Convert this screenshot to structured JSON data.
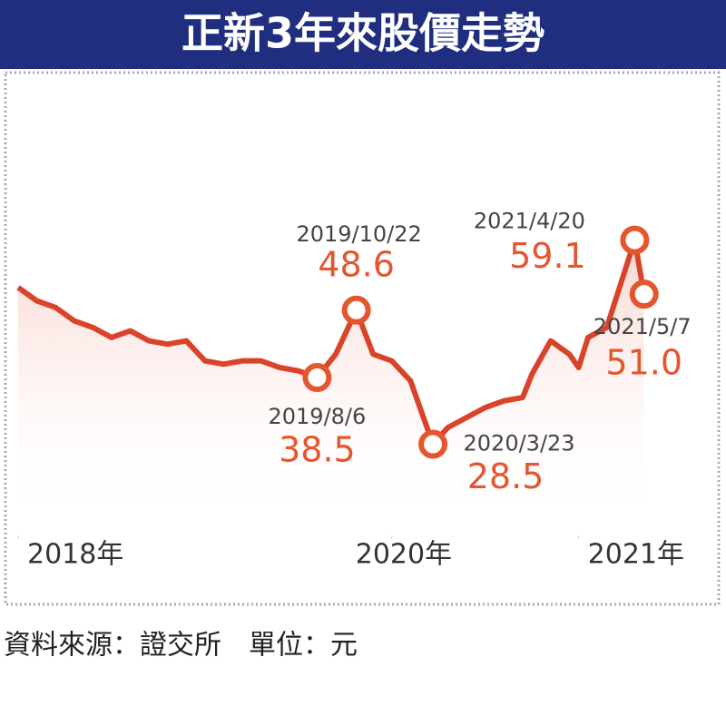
{
  "chart_data": {
    "type": "line",
    "title": "正新3年來股價走勢",
    "source": "資料來源：證交所　單位：元",
    "color": "#d9432a",
    "x": [
      2018.0,
      2018.1,
      2018.2,
      2018.3,
      2018.4,
      2018.5,
      2018.6,
      2018.7,
      2018.8,
      2018.9,
      2019.0,
      2019.1,
      2019.2,
      2019.3,
      2019.4,
      2019.5,
      2019.6,
      2019.7,
      2019.81,
      2019.9,
      2020.0,
      2020.1,
      2020.22,
      2020.3,
      2020.4,
      2020.5,
      2020.6,
      2020.7,
      2020.75,
      2020.85,
      2020.95,
      2021.0,
      2021.05,
      2021.15,
      2021.3,
      2021.35
    ],
    "values": [
      52,
      50,
      49,
      47,
      46,
      44.5,
      45.5,
      44,
      43.5,
      44,
      41,
      40.5,
      41,
      41,
      40,
      39.5,
      38.5,
      42,
      48.6,
      42,
      41,
      38,
      28.5,
      31,
      32.5,
      34,
      35,
      35.5,
      39,
      44,
      42,
      40,
      44.5,
      46,
      59.1,
      51
    ],
    "xlim": [
      2018,
      2021.4
    ],
    "ylim": [
      20,
      80
    ],
    "xticks": [
      {
        "value": 2018,
        "label": "2018年"
      },
      {
        "value": 2020,
        "label": "2020年"
      },
      {
        "value": 2021,
        "label": "2021年"
      }
    ],
    "annotations": [
      {
        "date": "2019/8/6",
        "x": 2019.6,
        "value": 38.5
      },
      {
        "date": "2019/10/22",
        "x": 2019.81,
        "value": 48.6
      },
      {
        "date": "2020/3/23",
        "x": 2020.22,
        "value": 28.5
      },
      {
        "date": "2021/4/20",
        "x": 2021.3,
        "value": 59.1
      },
      {
        "date": "2021/5/7",
        "x": 2021.35,
        "value": 51,
        "value_label": "51.0"
      }
    ]
  }
}
